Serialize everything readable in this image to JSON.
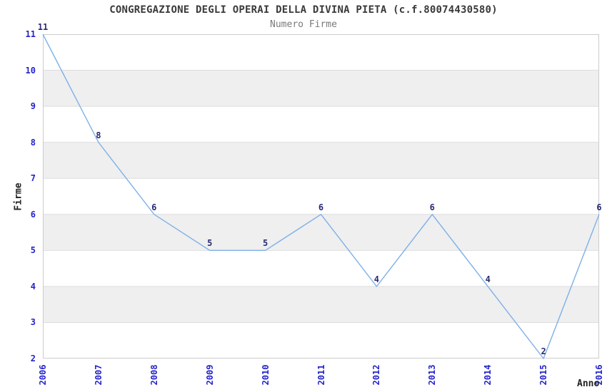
{
  "chart_data": {
    "type": "line",
    "title": "CONGREGAZIONE DEGLI OPERAI DELLA DIVINA PIETA (c.f.80074430580)",
    "subtitle": "Numero Firme",
    "xlabel": "Anno",
    "ylabel": "Firme",
    "x": [
      2006,
      2007,
      2008,
      2009,
      2010,
      2011,
      2012,
      2013,
      2014,
      2015,
      2016
    ],
    "values": [
      11,
      8,
      6,
      5,
      5,
      6,
      4,
      6,
      4,
      2,
      6
    ],
    "ylim": [
      2,
      11
    ],
    "yticks": [
      2,
      3,
      4,
      5,
      6,
      7,
      8,
      9,
      10,
      11
    ],
    "grid_bands": [
      [
        3,
        4
      ],
      [
        5,
        6
      ],
      [
        7,
        8
      ],
      [
        9,
        10
      ]
    ],
    "legend": "none",
    "point_labels_visible": true,
    "colors": {
      "line": "#7DB0E8",
      "tick_label": "#2424CC",
      "point_label": "#2A2A72",
      "title": "#3A3A3A",
      "subtitle": "#7A7A7A",
      "axis_label": "#222222",
      "band": "#EFEFEF",
      "gridline": "#DDDDDD",
      "border": "#CCCCCC",
      "background": "#FFFFFF"
    }
  }
}
